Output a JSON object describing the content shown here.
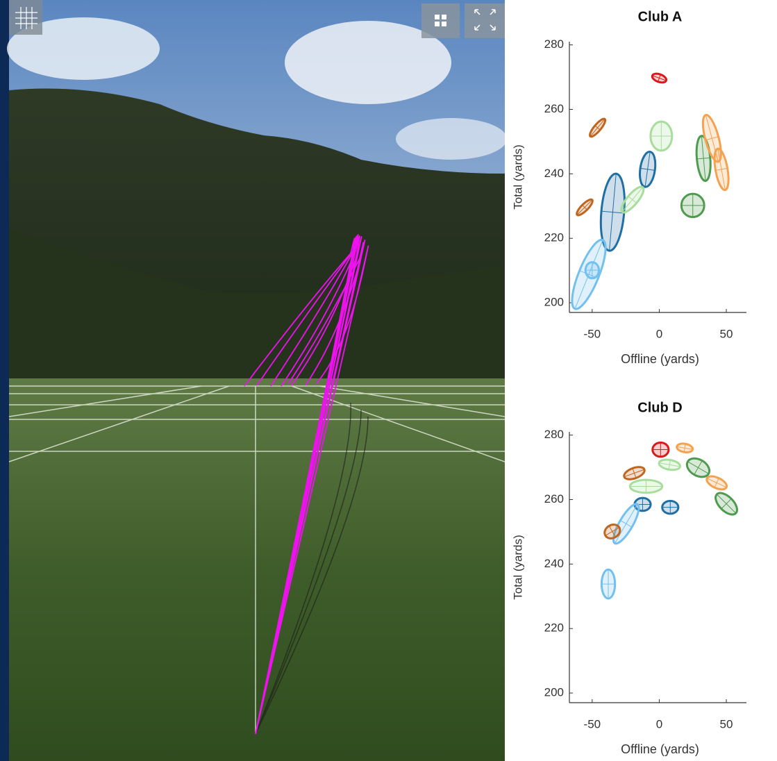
{
  "chart_data": [
    {
      "type": "ellipse",
      "title": "Club A",
      "xlabel": "Offline (yards)",
      "ylabel": "Total (yards)",
      "xlim": [
        -67,
        65
      ],
      "ylim": [
        197,
        281
      ],
      "xticks": [
        -50,
        0,
        50
      ],
      "yticks": [
        200,
        220,
        240,
        260,
        280
      ],
      "ellipses": [
        {
          "x": 0,
          "y": 269.7,
          "rx": 5.5,
          "ry": 1.2,
          "angle": 20,
          "color": "#d7191c"
        },
        {
          "x": -46,
          "y": 254.3,
          "rx": 2.5,
          "ry": 3.5,
          "angle": 40,
          "color": "#c0651e"
        },
        {
          "x": -55.6,
          "y": 229.6,
          "rx": 2.5,
          "ry": 3.3,
          "angle": 45,
          "color": "#c0651e"
        },
        {
          "x": 1.5,
          "y": 251.7,
          "rx": 8,
          "ry": 4.5,
          "angle": 0,
          "color": "#a8dd9c"
        },
        {
          "x": -8.7,
          "y": 241.4,
          "rx": 5.5,
          "ry": 5.5,
          "angle": 8,
          "color": "#1f6fa3"
        },
        {
          "x": -34.7,
          "y": 228.1,
          "rx": 8.5,
          "ry": 12,
          "angle": 5,
          "color": "#1f6fa3"
        },
        {
          "x": -20,
          "y": 232,
          "rx": 4,
          "ry": 5,
          "angle": 40,
          "color": "#a8dd9c"
        },
        {
          "x": -52.5,
          "y": 208.8,
          "rx": 7.5,
          "ry": 11.5,
          "angle": 22,
          "color": "#72c0f0"
        },
        {
          "x": -50,
          "y": 210.1,
          "rx": 5,
          "ry": 2.5,
          "angle": 0,
          "color": "#72c0f0"
        },
        {
          "x": 33,
          "y": 244.8,
          "rx": 5,
          "ry": 7,
          "angle": -5,
          "color": "#4e9a4e"
        },
        {
          "x": 25,
          "y": 230.2,
          "rx": 8.5,
          "ry": 3.6,
          "angle": 0,
          "color": "#4e9a4e"
        },
        {
          "x": 39.3,
          "y": 251,
          "rx": 5,
          "ry": 7.5,
          "angle": -15,
          "color": "#f4a24f"
        },
        {
          "x": 46.4,
          "y": 241.4,
          "rx": 4.5,
          "ry": 6.5,
          "angle": -10,
          "color": "#f4a24f"
        }
      ]
    },
    {
      "type": "ellipse",
      "title": "Club D",
      "xlabel": "Offline (yards)",
      "ylabel": "Total (yards)",
      "xlim": [
        -67,
        65
      ],
      "ylim": [
        197,
        281
      ],
      "xticks": [
        -50,
        0,
        50
      ],
      "yticks": [
        200,
        220,
        240,
        260,
        280
      ],
      "ellipses": [
        {
          "x": 1,
          "y": 275.5,
          "rx": 6,
          "ry": 2.2,
          "angle": 0,
          "color": "#d7191c"
        },
        {
          "x": 19,
          "y": 276,
          "rx": 6,
          "ry": 1.3,
          "angle": 10,
          "color": "#f4a24f"
        },
        {
          "x": 7.7,
          "y": 270.8,
          "rx": 8,
          "ry": 1.5,
          "angle": 10,
          "color": "#a8dd9c"
        },
        {
          "x": 29,
          "y": 269.9,
          "rx": 9,
          "ry": 2.5,
          "angle": 30,
          "color": "#4e9a4e"
        },
        {
          "x": -18.6,
          "y": 268.2,
          "rx": 8,
          "ry": 1.6,
          "angle": -20,
          "color": "#c0651e"
        },
        {
          "x": -9.8,
          "y": 264.1,
          "rx": 12,
          "ry": 2,
          "angle": 0,
          "color": "#a8dd9c"
        },
        {
          "x": 42.8,
          "y": 265.2,
          "rx": 8,
          "ry": 1.6,
          "angle": 25,
          "color": "#f4a24f"
        },
        {
          "x": 50,
          "y": 258.7,
          "rx": 10,
          "ry": 2.2,
          "angle": 45,
          "color": "#4e9a4e"
        },
        {
          "x": -12.4,
          "y": 258.5,
          "rx": 6,
          "ry": 2,
          "angle": 0,
          "color": "#1f6fa3"
        },
        {
          "x": 8.2,
          "y": 257.6,
          "rx": 6,
          "ry": 2,
          "angle": 0,
          "color": "#1f6fa3"
        },
        {
          "x": -24.7,
          "y": 252.5,
          "rx": 5,
          "ry": 7,
          "angle": 30,
          "color": "#72c0f0"
        },
        {
          "x": -35,
          "y": 250.1,
          "rx": 6,
          "ry": 2,
          "angle": -30,
          "color": "#c0651e"
        },
        {
          "x": -38,
          "y": 233.8,
          "rx": 5,
          "ry": 4.5,
          "angle": 0,
          "color": "#72c0f0"
        }
      ]
    }
  ]
}
